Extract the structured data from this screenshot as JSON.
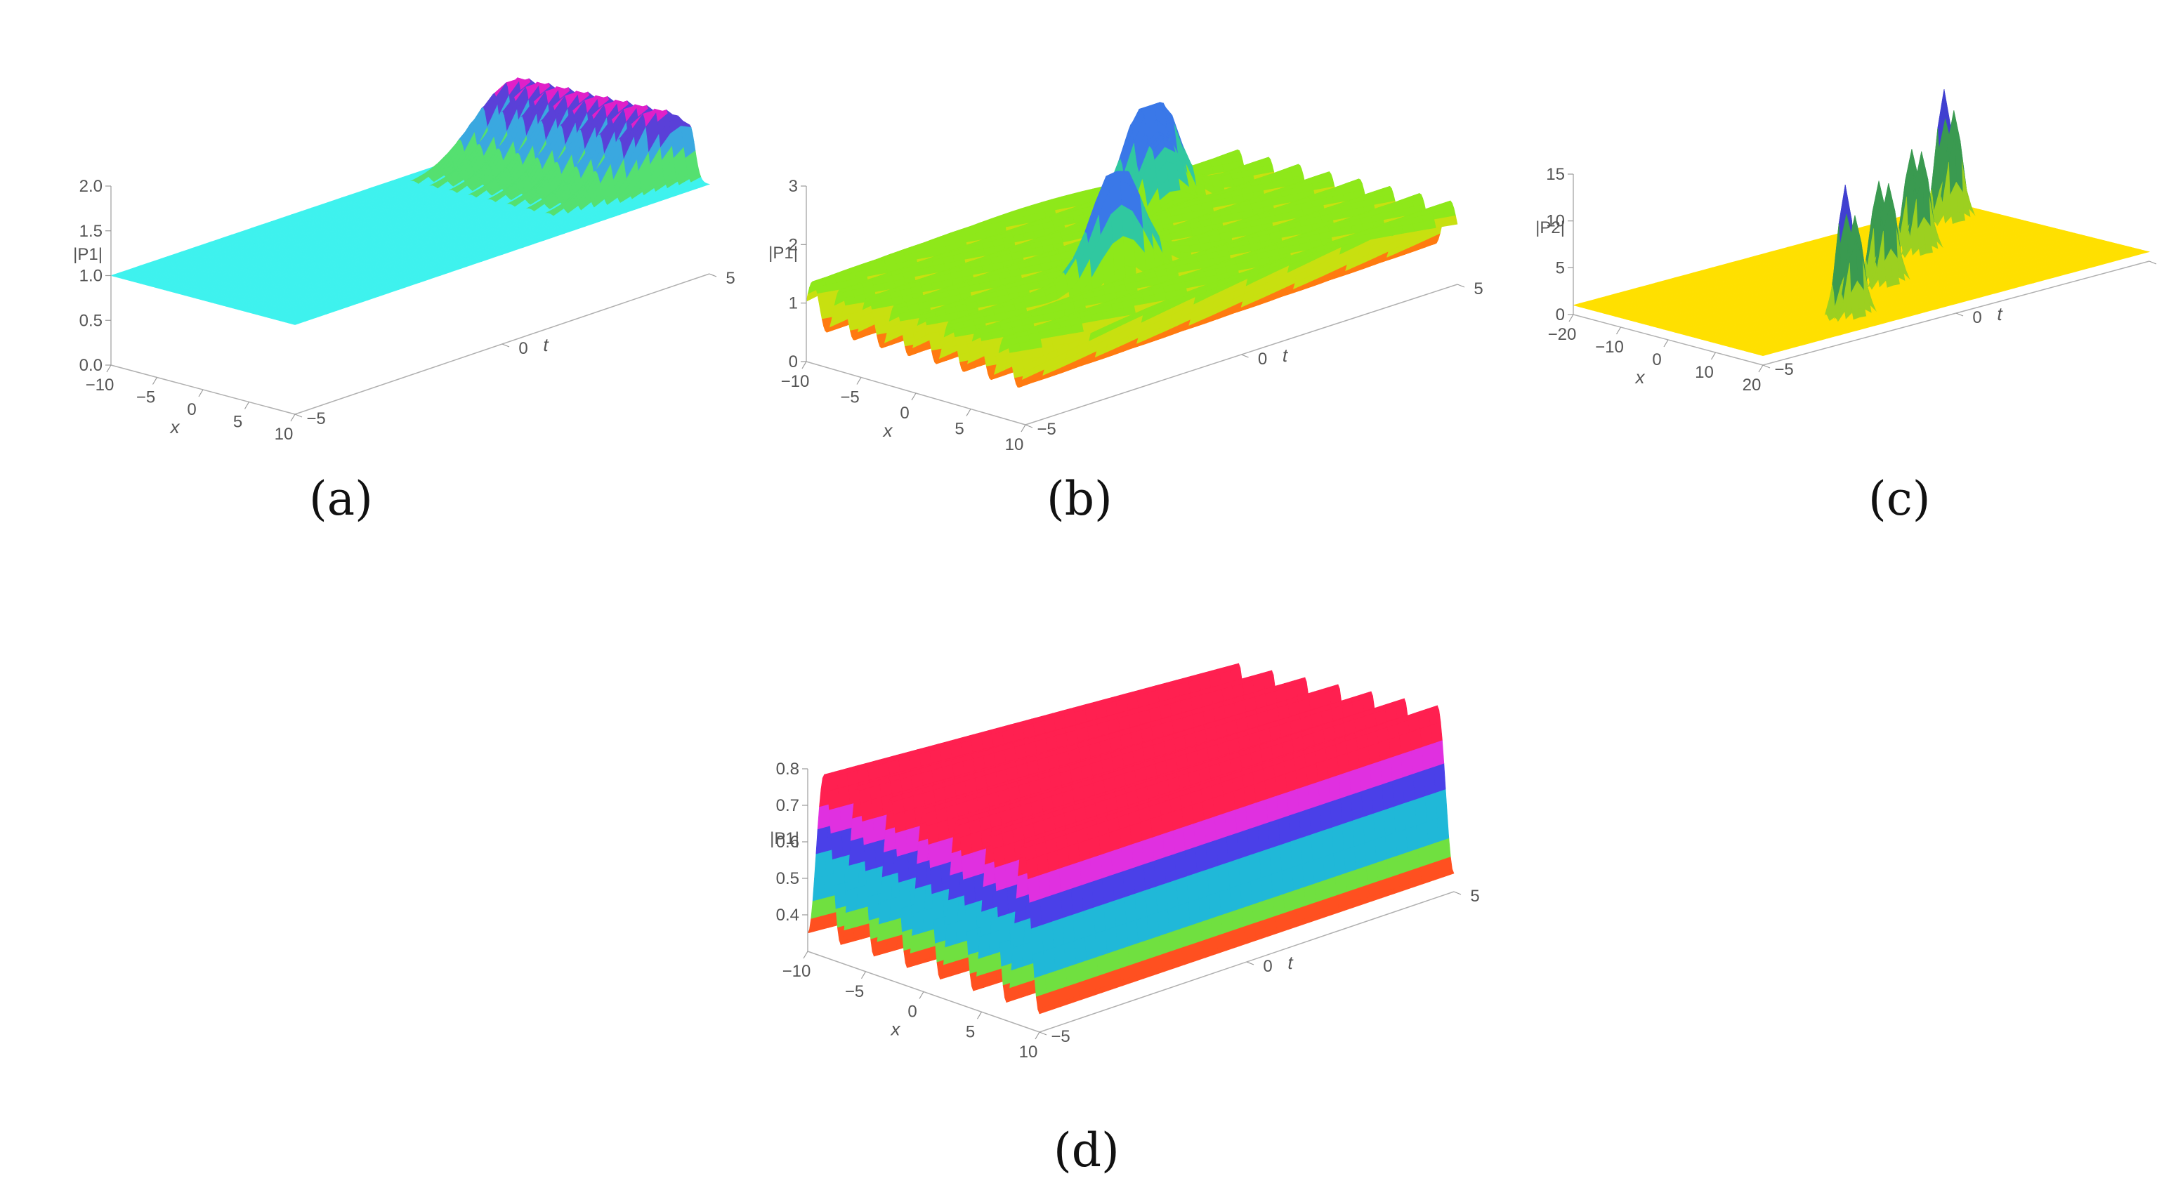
{
  "chart_data": [
    {
      "id": "a",
      "type": "surface3d",
      "caption": "(a)",
      "zlabel": "|P1|",
      "xlabel": "x",
      "tlabel": "t",
      "x_ticks": [
        "−10",
        "−5",
        "0",
        "5",
        "10"
      ],
      "t_ticks": [
        "−5",
        "0",
        "5"
      ],
      "z_ticks": [
        "0.0",
        "0.5",
        "1.0",
        "1.5",
        "2.0"
      ],
      "x_range": [
        -10,
        10
      ],
      "t_range": [
        -5,
        5
      ],
      "z_range": [
        0,
        2
      ],
      "background_level": 1.0,
      "peaks": [
        {
          "x": -9,
          "height": 1.9
        },
        {
          "x": -7,
          "height": 1.9
        },
        {
          "x": -5,
          "height": 1.9
        },
        {
          "x": -3,
          "height": 1.9
        },
        {
          "x": -1,
          "height": 1.9
        },
        {
          "x": 1,
          "height": 1.9
        },
        {
          "x": 3,
          "height": 1.9
        },
        {
          "x": 5,
          "height": 1.9
        }
      ],
      "surface_color": "#3ff2ee"
    },
    {
      "id": "b",
      "type": "surface3d",
      "caption": "(b)",
      "zlabel": "|P1|",
      "xlabel": "x",
      "tlabel": "t",
      "x_ticks": [
        "−10",
        "−5",
        "0",
        "5",
        "10"
      ],
      "t_ticks": [
        "−5",
        "0",
        "5"
      ],
      "z_ticks": [
        "0",
        "1",
        "2",
        "3"
      ],
      "x_range": [
        -10,
        10
      ],
      "t_range": [
        -5,
        5
      ],
      "z_range": [
        0,
        3
      ],
      "wave_count": 8,
      "wave_min": 0.6,
      "wave_max": 1.4,
      "peaks": [
        {
          "x": -5,
          "t": 2,
          "height": 3.0
        },
        {
          "x": -4,
          "t": 2,
          "height": 2.8
        },
        {
          "x": 3,
          "t": -1,
          "height": 2.9
        }
      ],
      "surface_color": "#9cf000"
    },
    {
      "id": "c",
      "type": "surface3d",
      "caption": "(c)",
      "zlabel": "|P2|",
      "xlabel": "x",
      "tlabel": "t",
      "x_ticks": [
        "−20",
        "−10",
        "0",
        "10",
        "20"
      ],
      "t_ticks": [
        "−5",
        "0",
        "5"
      ],
      "z_ticks": [
        "0",
        "5",
        "10",
        "15"
      ],
      "x_range": [
        -20,
        20
      ],
      "t_range": [
        -5,
        5
      ],
      "z_range": [
        0,
        15
      ],
      "background_level": 1.0,
      "peaks": [
        {
          "x": -14,
          "t": 4,
          "height": 15
        },
        {
          "x": -12,
          "t": 4,
          "height": 13
        },
        {
          "x": -5,
          "t": 2,
          "height": 12
        },
        {
          "x": -3,
          "t": 2,
          "height": 12
        },
        {
          "x": 4,
          "t": 0,
          "height": 12
        },
        {
          "x": 6,
          "t": 0,
          "height": 12
        },
        {
          "x": 13,
          "t": -2,
          "height": 15
        },
        {
          "x": 15,
          "t": -2,
          "height": 12
        }
      ],
      "surface_color": "#ffe000"
    },
    {
      "id": "d",
      "type": "surface3d",
      "caption": "(d)",
      "zlabel": "|P1|",
      "xlabel": "x",
      "tlabel": "t",
      "x_ticks": [
        "−10",
        "−5",
        "0",
        "5",
        "10"
      ],
      "t_ticks": [
        "−5",
        "0",
        "5"
      ],
      "z_ticks": [
        "0.4",
        "0.5",
        "0.6",
        "0.7",
        "0.8"
      ],
      "x_range": [
        -10,
        10
      ],
      "t_range": [
        -5,
        5
      ],
      "z_range": [
        0.3,
        0.8
      ],
      "wave_count": 7,
      "wave_min": 0.35,
      "wave_max": 0.8,
      "surface_color": "#ff2a6a"
    }
  ]
}
